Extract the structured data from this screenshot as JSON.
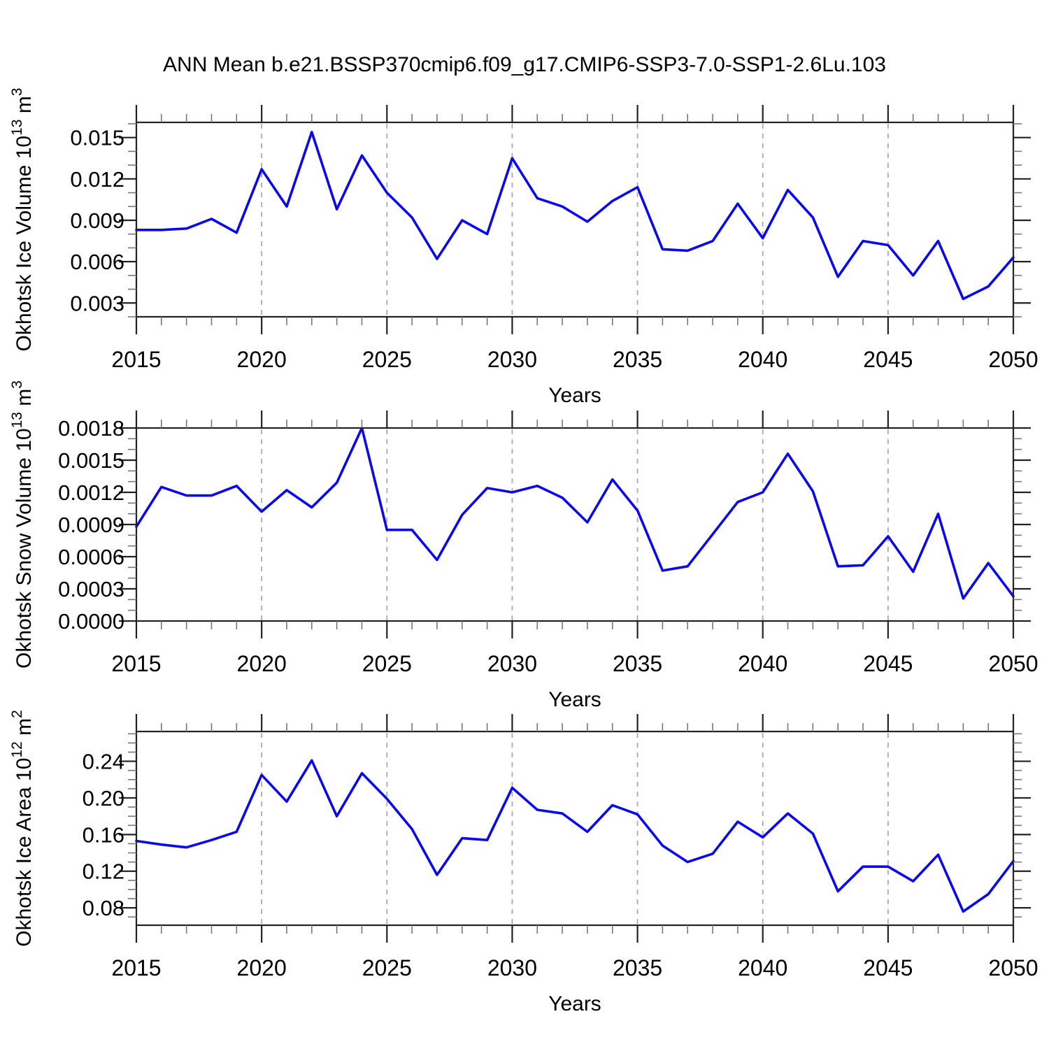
{
  "title": "ANN Mean b.e21.BSSP370cmip6.f09_g17.CMIP6-SSP3-7.0-SSP1-2.6Lu.103",
  "colors": {
    "line": "#0909ec",
    "frame": "#222222",
    "major_tick": "#222222",
    "minor_tick": "#777777",
    "grid": "#aaaaaa",
    "background": "#ffffff",
    "text": "#000000"
  },
  "chart_data": [
    {
      "type": "line",
      "ylabel_text": "Okhotsk Ice Volume 10^13 m^3",
      "ylabel_parts": [
        {
          "text": "Okhotsk Ice Volume 10",
          "sup": false
        },
        {
          "text": "13",
          "sup": true
        },
        {
          "text": " m",
          "sup": false
        },
        {
          "text": "3",
          "sup": true
        }
      ],
      "xlabel": "Years",
      "x": [
        2015,
        2016,
        2017,
        2018,
        2019,
        2020,
        2021,
        2022,
        2023,
        2024,
        2025,
        2026,
        2027,
        2028,
        2029,
        2030,
        2031,
        2032,
        2033,
        2034,
        2035,
        2036,
        2037,
        2038,
        2039,
        2040,
        2041,
        2042,
        2043,
        2044,
        2045,
        2046,
        2047,
        2048,
        2049,
        2050
      ],
      "values": [
        0.0083,
        0.0083,
        0.0084,
        0.0091,
        0.0081,
        0.0127,
        0.01,
        0.0154,
        0.0098,
        0.0137,
        0.011,
        0.0092,
        0.0062,
        0.009,
        0.008,
        0.0135,
        0.0106,
        0.01,
        0.0089,
        0.0104,
        0.0114,
        0.0069,
        0.0068,
        0.0075,
        0.0102,
        0.0077,
        0.0112,
        0.0092,
        0.0049,
        0.0075,
        0.0072,
        0.005,
        0.0075,
        0.0033,
        0.0042,
        0.0063
      ],
      "xlim": [
        2015,
        2050
      ],
      "ylim": [
        0.002,
        0.0161
      ],
      "xticks": [
        2015,
        2020,
        2025,
        2030,
        2035,
        2040,
        2045,
        2050
      ],
      "x_minor_step": 1,
      "ytick_values": [
        0.003,
        0.006,
        0.009,
        0.012,
        0.015
      ],
      "ytick_labels": [
        "0.003",
        "0.006",
        "0.009",
        "0.012",
        "0.015"
      ],
      "y_minor_step": 0.001,
      "grid_x": [
        2020,
        2025,
        2030,
        2035,
        2040,
        2045
      ],
      "grid_on": "vertical-dashed",
      "legend": "none"
    },
    {
      "type": "line",
      "ylabel_text": "Okhotsk Snow Volume 10^13 m^3",
      "ylabel_parts": [
        {
          "text": "Okhotsk Snow Volume 10",
          "sup": false
        },
        {
          "text": "13",
          "sup": true
        },
        {
          "text": " m",
          "sup": false
        },
        {
          "text": "3",
          "sup": true
        }
      ],
      "xlabel": "Years",
      "x": [
        2015,
        2016,
        2017,
        2018,
        2019,
        2020,
        2021,
        2022,
        2023,
        2024,
        2025,
        2026,
        2027,
        2028,
        2029,
        2030,
        2031,
        2032,
        2033,
        2034,
        2035,
        2036,
        2037,
        2038,
        2039,
        2040,
        2041,
        2042,
        2043,
        2044,
        2045,
        2046,
        2047,
        2048,
        2049,
        2050
      ],
      "values": [
        0.00088,
        0.00125,
        0.00117,
        0.00117,
        0.00126,
        0.00102,
        0.00122,
        0.00106,
        0.00129,
        0.0018,
        0.00085,
        0.00085,
        0.00057,
        0.00099,
        0.00124,
        0.0012,
        0.00126,
        0.00115,
        0.00092,
        0.00132,
        0.00103,
        0.00047,
        0.00051,
        0.00081,
        0.00111,
        0.0012,
        0.00156,
        0.00121,
        0.00051,
        0.00052,
        0.00079,
        0.00046,
        0.001,
        0.00021,
        0.00054,
        0.00023
      ],
      "xlim": [
        2015,
        2050
      ],
      "ylim": [
        0.0,
        0.0018
      ],
      "xticks": [
        2015,
        2020,
        2025,
        2030,
        2035,
        2040,
        2045,
        2050
      ],
      "x_minor_step": 1,
      "ytick_values": [
        0.0,
        0.0003,
        0.0006,
        0.0009,
        0.0012,
        0.0015,
        0.0018
      ],
      "ytick_labels": [
        "0.0000",
        "0.0003",
        "0.0006",
        "0.0009",
        "0.0012",
        "0.0015",
        "0.0018"
      ],
      "y_minor_step": 0.0001,
      "grid_x": [
        2020,
        2025,
        2030,
        2035,
        2040,
        2045
      ],
      "grid_on": "vertical-dashed",
      "legend": "none"
    },
    {
      "type": "line",
      "ylabel_text": "Okhotsk Ice Area 10^12 m^2",
      "ylabel_parts": [
        {
          "text": "Okhotsk Ice Area 10",
          "sup": false
        },
        {
          "text": "12",
          "sup": true
        },
        {
          "text": " m",
          "sup": false
        },
        {
          "text": "2",
          "sup": true
        }
      ],
      "xlabel": "Years",
      "x": [
        2015,
        2016,
        2017,
        2018,
        2019,
        2020,
        2021,
        2022,
        2023,
        2024,
        2025,
        2026,
        2027,
        2028,
        2029,
        2030,
        2031,
        2032,
        2033,
        2034,
        2035,
        2036,
        2037,
        2038,
        2039,
        2040,
        2041,
        2042,
        2043,
        2044,
        2045,
        2046,
        2047,
        2048,
        2049,
        2050
      ],
      "values": [
        0.153,
        0.149,
        0.146,
        0.154,
        0.163,
        0.225,
        0.196,
        0.241,
        0.18,
        0.227,
        0.199,
        0.166,
        0.116,
        0.156,
        0.154,
        0.211,
        0.187,
        0.183,
        0.163,
        0.192,
        0.182,
        0.148,
        0.13,
        0.139,
        0.174,
        0.157,
        0.183,
        0.161,
        0.098,
        0.125,
        0.125,
        0.109,
        0.138,
        0.076,
        0.095,
        0.131
      ],
      "xlim": [
        2015,
        2050
      ],
      "ylim": [
        0.061,
        0.2725
      ],
      "xticks": [
        2015,
        2020,
        2025,
        2030,
        2035,
        2040,
        2045,
        2050
      ],
      "x_minor_step": 1,
      "ytick_values": [
        0.08,
        0.12,
        0.16,
        0.2,
        0.24
      ],
      "ytick_labels": [
        "0.08",
        "0.12",
        "0.16",
        "0.20",
        "0.24"
      ],
      "y_minor_step": 0.01,
      "grid_x": [
        2020,
        2025,
        2030,
        2035,
        2040,
        2045
      ],
      "grid_on": "vertical-dashed",
      "legend": "none"
    }
  ]
}
